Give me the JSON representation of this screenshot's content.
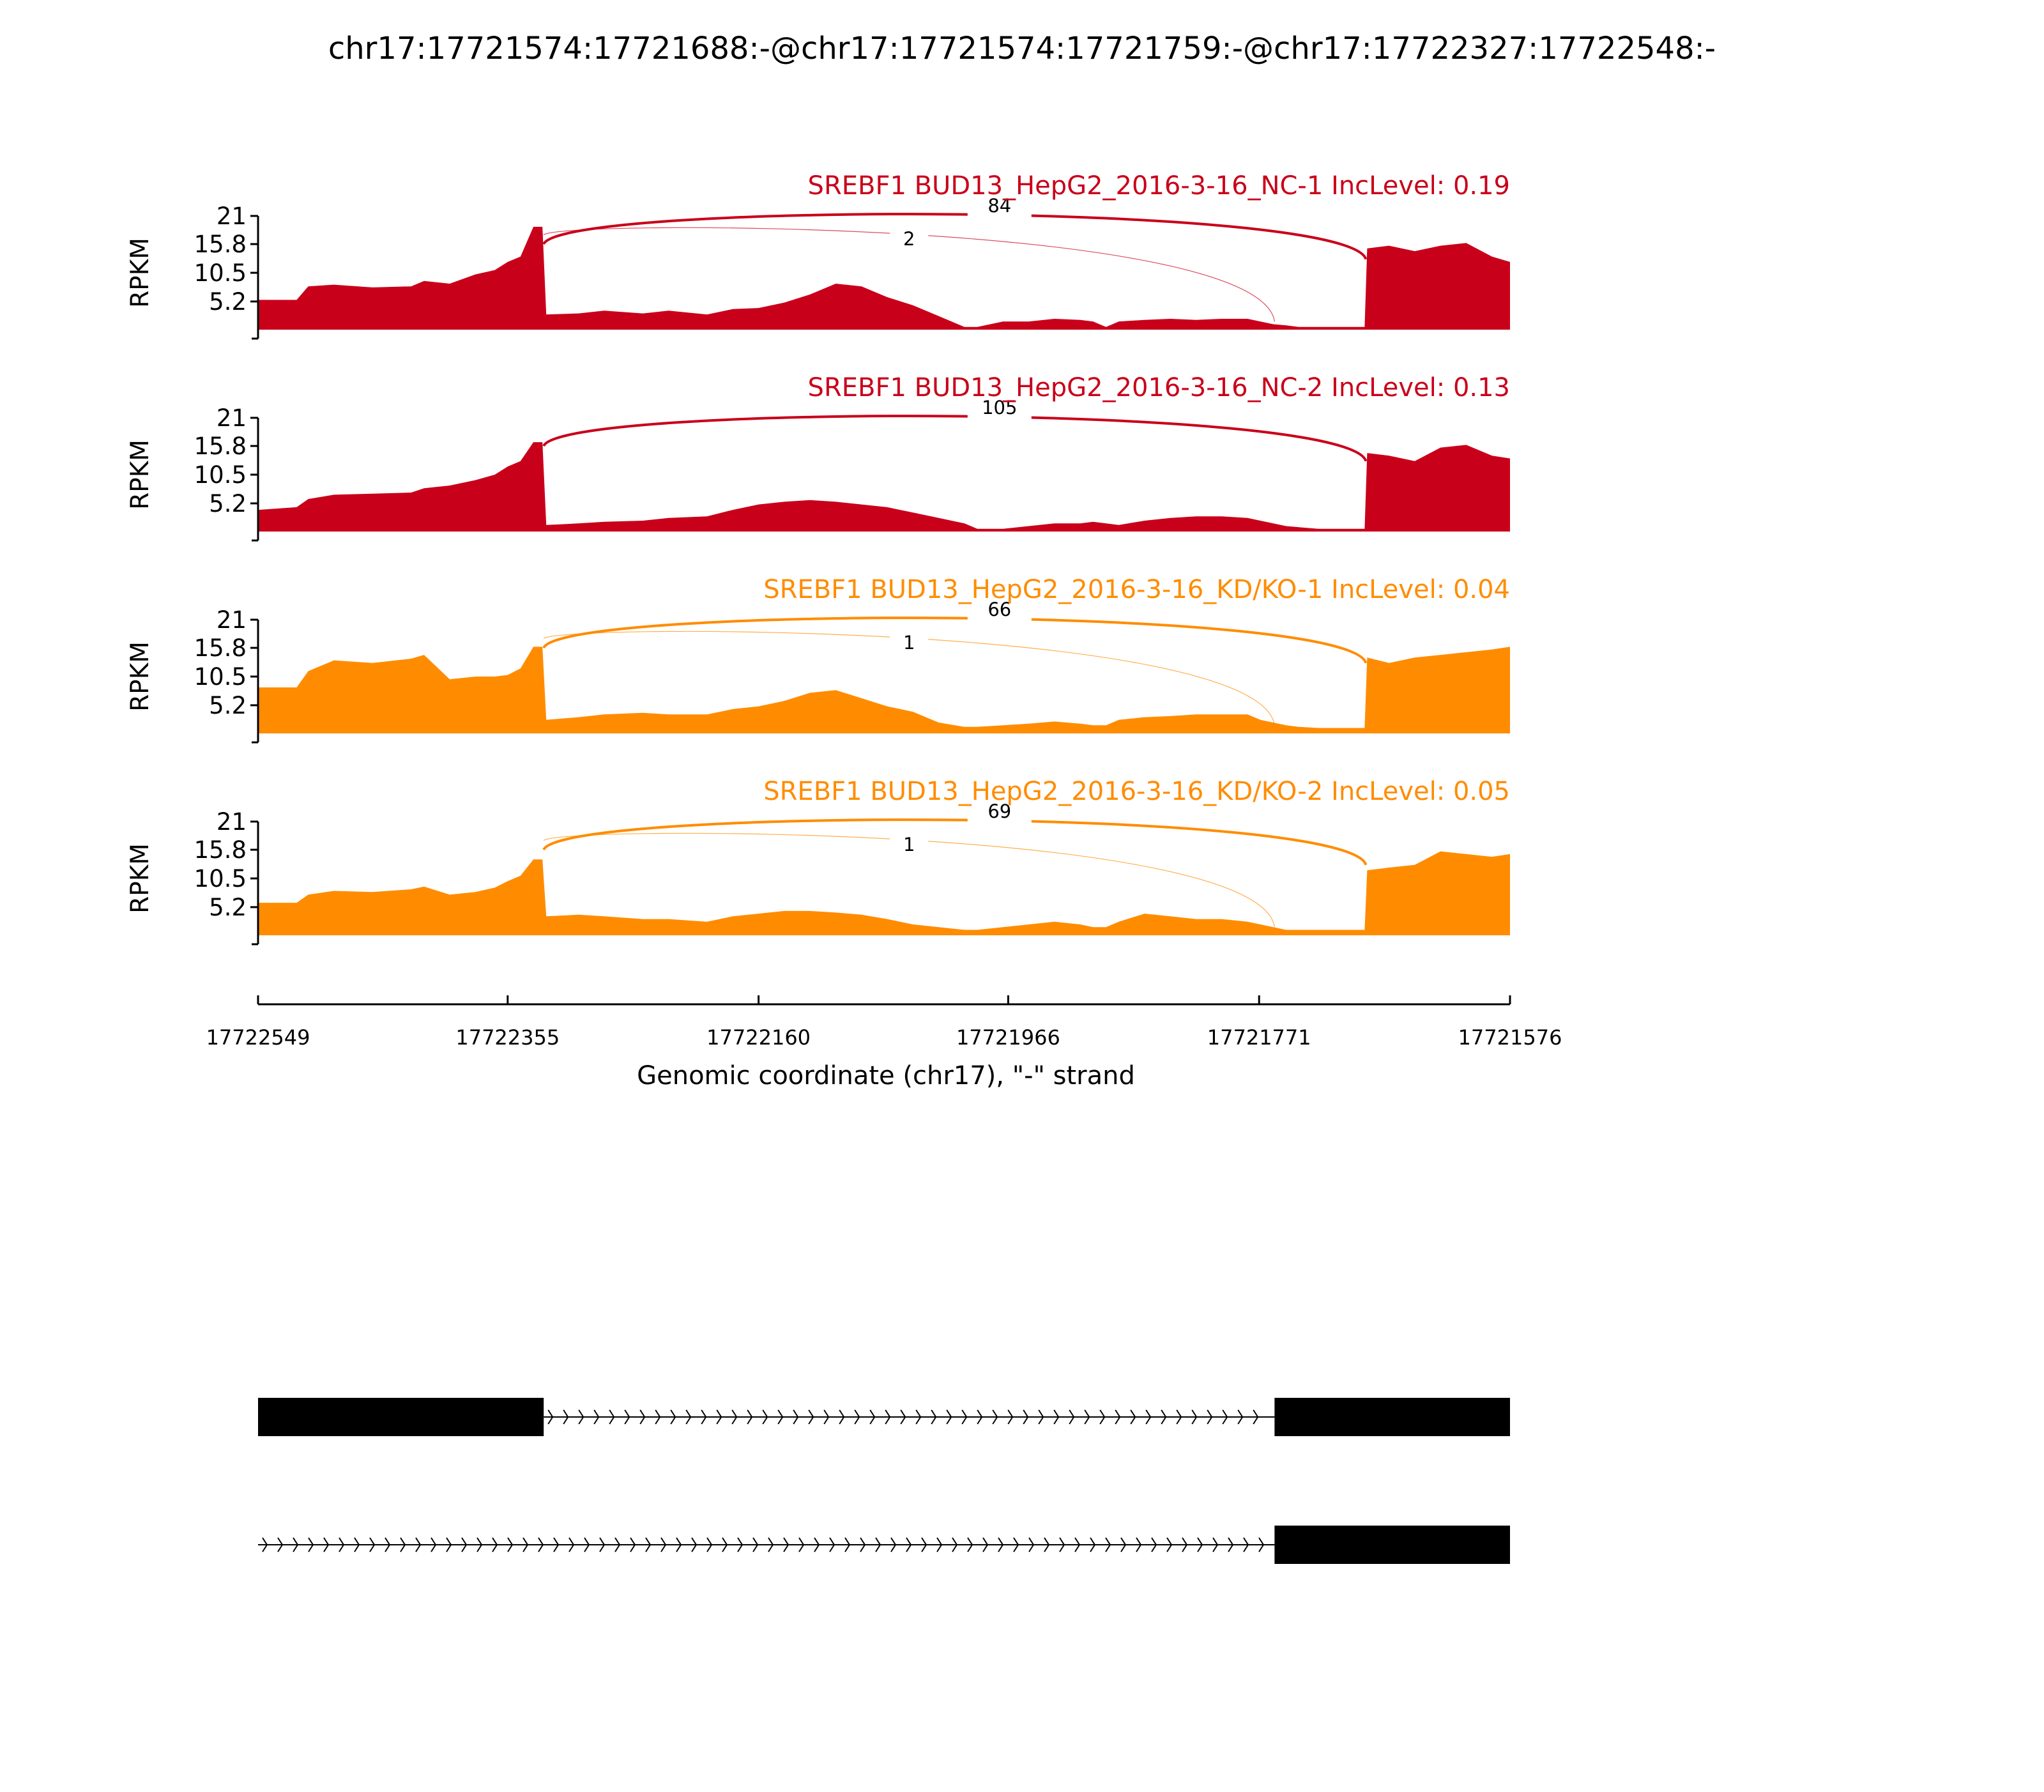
{
  "chart_data": {
    "type": "area",
    "title": "chr17:17721574:17721688:-@chr17:17721574:17721759:-@chr17:17722327:17722548:-",
    "xlabel": "Genomic coordinate (chr17), \"-\" strand",
    "xlim": [
      17722549,
      17721576
    ],
    "xticks": [
      "17722549",
      "17722355",
      "17722160",
      "17721966",
      "17721771",
      "17721576"
    ],
    "ylabel": "RPKM",
    "ylim": [
      0,
      21
    ],
    "yticks": [
      "21",
      "15.8",
      "10.5",
      "5.2"
    ],
    "grid": false,
    "panels": [
      {
        "title": "SREBF1 BUD13_HepG2_2016-3-16_NC-1 IncLevel: 0.19",
        "color": "#c9001a",
        "junctions": [
          {
            "from": 17722327,
            "to": 17721688,
            "count": "84",
            "weight": "thick"
          },
          {
            "from": 17722327,
            "to": 17721759,
            "count": "2",
            "weight": "thin"
          }
        ],
        "coverage": {
          "x": [
            17722549,
            17722519,
            17722510,
            17722490,
            17722460,
            17722430,
            17722420,
            17722400,
            17722380,
            17722365,
            17722355,
            17722345,
            17722335,
            17722328,
            17722325,
            17722300,
            17722280,
            17722250,
            17722230,
            17722200,
            17722180,
            17722160,
            17722140,
            17722120,
            17722100,
            17722080,
            17722060,
            17722040,
            17722020,
            17722000,
            17721990,
            17721970,
            17721950,
            17721930,
            17721910,
            17721900,
            17721890,
            17721880,
            17721860,
            17721840,
            17721820,
            17721800,
            17721780,
            17721770,
            17721760,
            17721750,
            17721740,
            17721725,
            17721700,
            17721689,
            17721687,
            17721670,
            17721650,
            17721630,
            17721610,
            17721590,
            17721576
          ],
          "y": [
            5.5,
            5.5,
            8.0,
            8.3,
            7.8,
            8.0,
            9.0,
            8.5,
            10.2,
            11.0,
            12.5,
            13.5,
            19.0,
            19.0,
            2.8,
            3.0,
            3.5,
            3.0,
            3.5,
            2.8,
            3.8,
            4.0,
            5.0,
            6.5,
            8.5,
            8.0,
            6.0,
            4.5,
            2.5,
            0.5,
            0.5,
            1.5,
            1.5,
            2.0,
            1.8,
            1.5,
            0.5,
            1.5,
            1.8,
            2.0,
            1.8,
            2.0,
            2.0,
            1.5,
            1.0,
            0.8,
            0.5,
            0.5,
            0.5,
            0.5,
            15.0,
            15.5,
            14.5,
            15.5,
            16.0,
            13.5,
            12.5
          ]
        }
      },
      {
        "title": "SREBF1 BUD13_HepG2_2016-3-16_NC-2 IncLevel: 0.13",
        "color": "#c9001a",
        "junctions": [
          {
            "from": 17722327,
            "to": 17721688,
            "count": "105",
            "weight": "thick"
          }
        ],
        "coverage": {
          "x": [
            17722549,
            17722519,
            17722510,
            17722490,
            17722460,
            17722430,
            17722420,
            17722400,
            17722380,
            17722365,
            17722355,
            17722345,
            17722335,
            17722328,
            17722325,
            17722300,
            17722280,
            17722250,
            17722230,
            17722200,
            17722180,
            17722160,
            17722140,
            17722120,
            17722100,
            17722080,
            17722060,
            17722040,
            17722020,
            17722000,
            17721990,
            17721970,
            17721950,
            17721930,
            17721910,
            17721900,
            17721890,
            17721880,
            17721860,
            17721840,
            17721820,
            17721800,
            17721780,
            17721770,
            17721760,
            17721750,
            17721740,
            17721725,
            17721700,
            17721689,
            17721687,
            17721670,
            17721650,
            17721630,
            17721610,
            17721590,
            17721576
          ],
          "y": [
            4.0,
            4.5,
            6.0,
            6.8,
            7.0,
            7.2,
            8.0,
            8.5,
            9.5,
            10.5,
            12.0,
            13.0,
            16.5,
            16.5,
            1.2,
            1.5,
            1.8,
            2.0,
            2.5,
            2.8,
            4.0,
            5.0,
            5.5,
            5.8,
            5.5,
            5.0,
            4.5,
            3.5,
            2.5,
            1.5,
            0.5,
            0.5,
            1.0,
            1.5,
            1.5,
            1.8,
            1.5,
            1.2,
            2.0,
            2.5,
            2.8,
            2.8,
            2.5,
            2.0,
            1.5,
            1.0,
            0.8,
            0.5,
            0.5,
            0.5,
            14.5,
            14.0,
            13.0,
            15.5,
            16.0,
            14.0,
            13.5
          ]
        }
      },
      {
        "title": "SREBF1 BUD13_HepG2_2016-3-16_KD/KO-1 IncLevel: 0.04",
        "color": "#ff8c00",
        "junctions": [
          {
            "from": 17722327,
            "to": 17721688,
            "count": "66",
            "weight": "thick"
          },
          {
            "from": 17722327,
            "to": 17721759,
            "count": "1",
            "weight": "thin"
          }
        ],
        "coverage": {
          "x": [
            17722549,
            17722519,
            17722510,
            17722490,
            17722460,
            17722430,
            17722420,
            17722400,
            17722380,
            17722365,
            17722355,
            17722345,
            17722335,
            17722328,
            17722325,
            17722300,
            17722280,
            17722250,
            17722230,
            17722200,
            17722180,
            17722160,
            17722140,
            17722120,
            17722100,
            17722080,
            17722060,
            17722040,
            17722020,
            17722000,
            17721990,
            17721970,
            17721950,
            17721930,
            17721910,
            17721900,
            17721890,
            17721880,
            17721860,
            17721840,
            17721820,
            17721800,
            17721780,
            17721770,
            17721760,
            17721750,
            17721740,
            17721725,
            17721700,
            17721689,
            17721687,
            17721670,
            17721650,
            17721630,
            17721610,
            17721590,
            17721576
          ],
          "y": [
            8.5,
            8.5,
            11.5,
            13.5,
            13.0,
            13.8,
            14.5,
            10.0,
            10.5,
            10.5,
            10.8,
            12.0,
            16.0,
            16.0,
            2.5,
            3.0,
            3.5,
            3.8,
            3.5,
            3.5,
            4.5,
            5.0,
            6.0,
            7.5,
            8.0,
            6.5,
            5.0,
            4.0,
            2.0,
            1.2,
            1.2,
            1.5,
            1.8,
            2.2,
            1.8,
            1.5,
            1.5,
            2.5,
            3.0,
            3.2,
            3.5,
            3.5,
            3.5,
            2.5,
            2.0,
            1.5,
            1.2,
            1.0,
            1.0,
            1.0,
            14.0,
            13.0,
            14.0,
            14.5,
            15.0,
            15.5,
            16.0
          ]
        }
      },
      {
        "title": "SREBF1 BUD13_HepG2_2016-3-16_KD/KO-2 IncLevel: 0.05",
        "color": "#ff8c00",
        "junctions": [
          {
            "from": 17722327,
            "to": 17721688,
            "count": "69",
            "weight": "thick"
          },
          {
            "from": 17722327,
            "to": 17721759,
            "count": "1",
            "weight": "thin"
          }
        ],
        "coverage": {
          "x": [
            17722549,
            17722519,
            17722510,
            17722490,
            17722460,
            17722430,
            17722420,
            17722400,
            17722380,
            17722365,
            17722355,
            17722345,
            17722335,
            17722328,
            17722325,
            17722300,
            17722280,
            17722250,
            17722230,
            17722200,
            17722180,
            17722160,
            17722140,
            17722120,
            17722100,
            17722080,
            17722060,
            17722040,
            17722020,
            17722000,
            17721990,
            17721970,
            17721950,
            17721930,
            17721910,
            17721900,
            17721890,
            17721880,
            17721860,
            17721840,
            17721820,
            17721800,
            17721780,
            17721770,
            17721760,
            17721750,
            17721740,
            17721725,
            17721700,
            17721689,
            17721687,
            17721670,
            17721650,
            17721630,
            17721610,
            17721590,
            17721576
          ],
          "y": [
            6.0,
            6.0,
            7.5,
            8.2,
            8.0,
            8.5,
            9.0,
            7.5,
            8.0,
            8.8,
            10.0,
            11.0,
            14.0,
            14.0,
            3.5,
            3.8,
            3.5,
            3.0,
            3.0,
            2.5,
            3.5,
            4.0,
            4.5,
            4.5,
            4.2,
            3.8,
            3.0,
            2.0,
            1.5,
            1.0,
            1.0,
            1.5,
            2.0,
            2.5,
            2.0,
            1.5,
            1.5,
            2.5,
            4.0,
            3.5,
            3.0,
            3.0,
            2.5,
            2.0,
            1.5,
            1.0,
            1.0,
            1.0,
            1.0,
            1.0,
            12.0,
            12.5,
            13.0,
            15.5,
            15.0,
            14.5,
            15.0
          ]
        }
      }
    ],
    "transcripts": [
      {
        "exons": [
          [
            17722549,
            17722327
          ],
          [
            17721759,
            17721576
          ]
        ],
        "intron": [
          17722327,
          17721759
        ]
      },
      {
        "exons": [
          [
            17721759,
            17721576
          ]
        ],
        "intron": [
          17722549,
          17721759
        ]
      }
    ]
  }
}
